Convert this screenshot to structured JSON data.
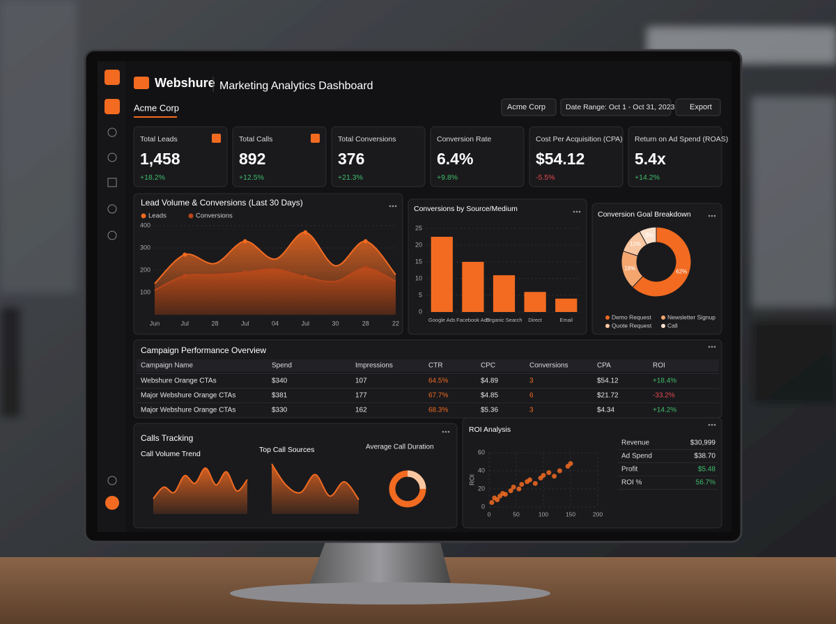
{
  "header": {
    "brand": "Webshure",
    "title": "Marketing Analytics Dashboard",
    "tab": "Acme Corp",
    "account": "Acme Corp",
    "date_range": "Date Range: Oct 1 - Oct 31, 2023",
    "export": "Export"
  },
  "kpis": [
    {
      "title": "Total Leads",
      "value": "1,458",
      "change": "+18.2%"
    },
    {
      "title": "Total Calls",
      "value": "892",
      "change": "+12.5%"
    },
    {
      "title": "Total Conversions",
      "value": "376",
      "change": "+21.3%"
    },
    {
      "title": "Conversion Rate",
      "value": "6.4%",
      "change": "+9.8%"
    },
    {
      "title": "Cost Per Acquisition (CPA)",
      "value": "$54.12",
      "change": "-5.5%"
    },
    {
      "title": "Return on Ad Spend (ROAS)",
      "value": "5.4x",
      "change": "+14.2%"
    }
  ],
  "chart_data": [
    {
      "type": "area",
      "title": "Lead Volume & Conversions (Last 30 Days)",
      "categories": [
        "Jun",
        "Jul",
        "28",
        "Jul",
        "04",
        "Jul",
        "30",
        "28",
        "22"
      ],
      "series": [
        {
          "name": "Leads",
          "color": "#f26b21",
          "values": [
            140,
            270,
            230,
            330,
            250,
            370,
            220,
            330,
            180
          ]
        },
        {
          "name": "Conversions",
          "color": "#b8461a",
          "values": [
            110,
            175,
            180,
            190,
            205,
            170,
            150,
            210,
            150
          ]
        }
      ],
      "ylim": [
        0,
        400
      ],
      "yticks": [
        100,
        200,
        300,
        400
      ],
      "grid": true
    },
    {
      "type": "bar",
      "title": "Conversions by Source/Medium",
      "categories": [
        "Google Ads",
        "Facebook Ads",
        "Organic Search",
        "Direct",
        "Email"
      ],
      "values": [
        22.5,
        15,
        11,
        6,
        4
      ],
      "color": "#f26b21",
      "ylim": [
        0,
        25
      ],
      "yticks": [
        0,
        5,
        10,
        15,
        20,
        25
      ],
      "grid": true
    },
    {
      "type": "pie",
      "title": "Conversion Goal Breakdown",
      "categories": [
        "Demo Request",
        "Newsletter Signup",
        "Quote Request",
        "Call"
      ],
      "values": [
        62,
        18,
        12,
        8
      ],
      "value_labels": [
        "62%",
        "18%",
        "12%",
        "8%"
      ],
      "colors": [
        "#f26b21",
        "#f5a66f",
        "#f8c6a0",
        "#fbe0cc"
      ]
    },
    {
      "type": "area",
      "title": "Call Volume Trend",
      "series": [
        {
          "color": "#f26b21",
          "values": [
            20,
            35,
            28,
            50,
            40,
            60,
            38,
            55,
            30,
            45
          ]
        }
      ]
    },
    {
      "type": "area",
      "title": "Top Call Sources",
      "series": [
        {
          "color": "#f26b21",
          "values": [
            70,
            40,
            30,
            55,
            25,
            45,
            20
          ]
        }
      ]
    },
    {
      "type": "scatter",
      "title": "ROI Analysis",
      "ylabel": "ROI",
      "color": "#f26b21",
      "x": [
        5,
        10,
        15,
        20,
        25,
        30,
        40,
        45,
        55,
        60,
        70,
        75,
        85,
        95,
        100,
        110,
        120,
        130,
        145,
        150
      ],
      "y": [
        5,
        10,
        8,
        12,
        15,
        14,
        18,
        22,
        20,
        25,
        28,
        30,
        26,
        32,
        35,
        38,
        34,
        40,
        45,
        48
      ],
      "xlim": [
        0,
        200
      ],
      "xticks": [
        0,
        50,
        100,
        150,
        200
      ],
      "ylim": [
        0,
        60
      ],
      "yticks": [
        0,
        20,
        40,
        60
      ],
      "grid": true
    }
  ],
  "table": {
    "title": "Campaign Performance Overview",
    "columns": [
      "Campaign Name",
      "Spend",
      "Impressions",
      "CTR",
      "CPC",
      "Conversions",
      "CPA",
      "ROI"
    ],
    "rows": [
      [
        "Webshure Orange CTAs",
        "$340",
        "107",
        "64.5%",
        "$4.89",
        "3",
        "$54.12",
        "+18.4%"
      ],
      [
        "Major Webshure Orange CTAs",
        "$381",
        "177",
        "67.7%",
        "$4.85",
        "6",
        "$21.72",
        "-33.2%"
      ],
      [
        "Major Webshure Orange CTAs",
        "$330",
        "162",
        "68.3%",
        "$5.36",
        "3",
        "$4.34",
        "+14.2%"
      ]
    ]
  },
  "calls_tracking": {
    "title": "Calls Tracking",
    "duration_label": "Average Call Duration"
  },
  "roi_summary": [
    [
      "Revenue",
      "$30,999"
    ],
    [
      "Ad Spend",
      "$38.70"
    ],
    [
      "Profit",
      "$5.48"
    ],
    [
      "ROI %",
      "56.7%"
    ]
  ]
}
